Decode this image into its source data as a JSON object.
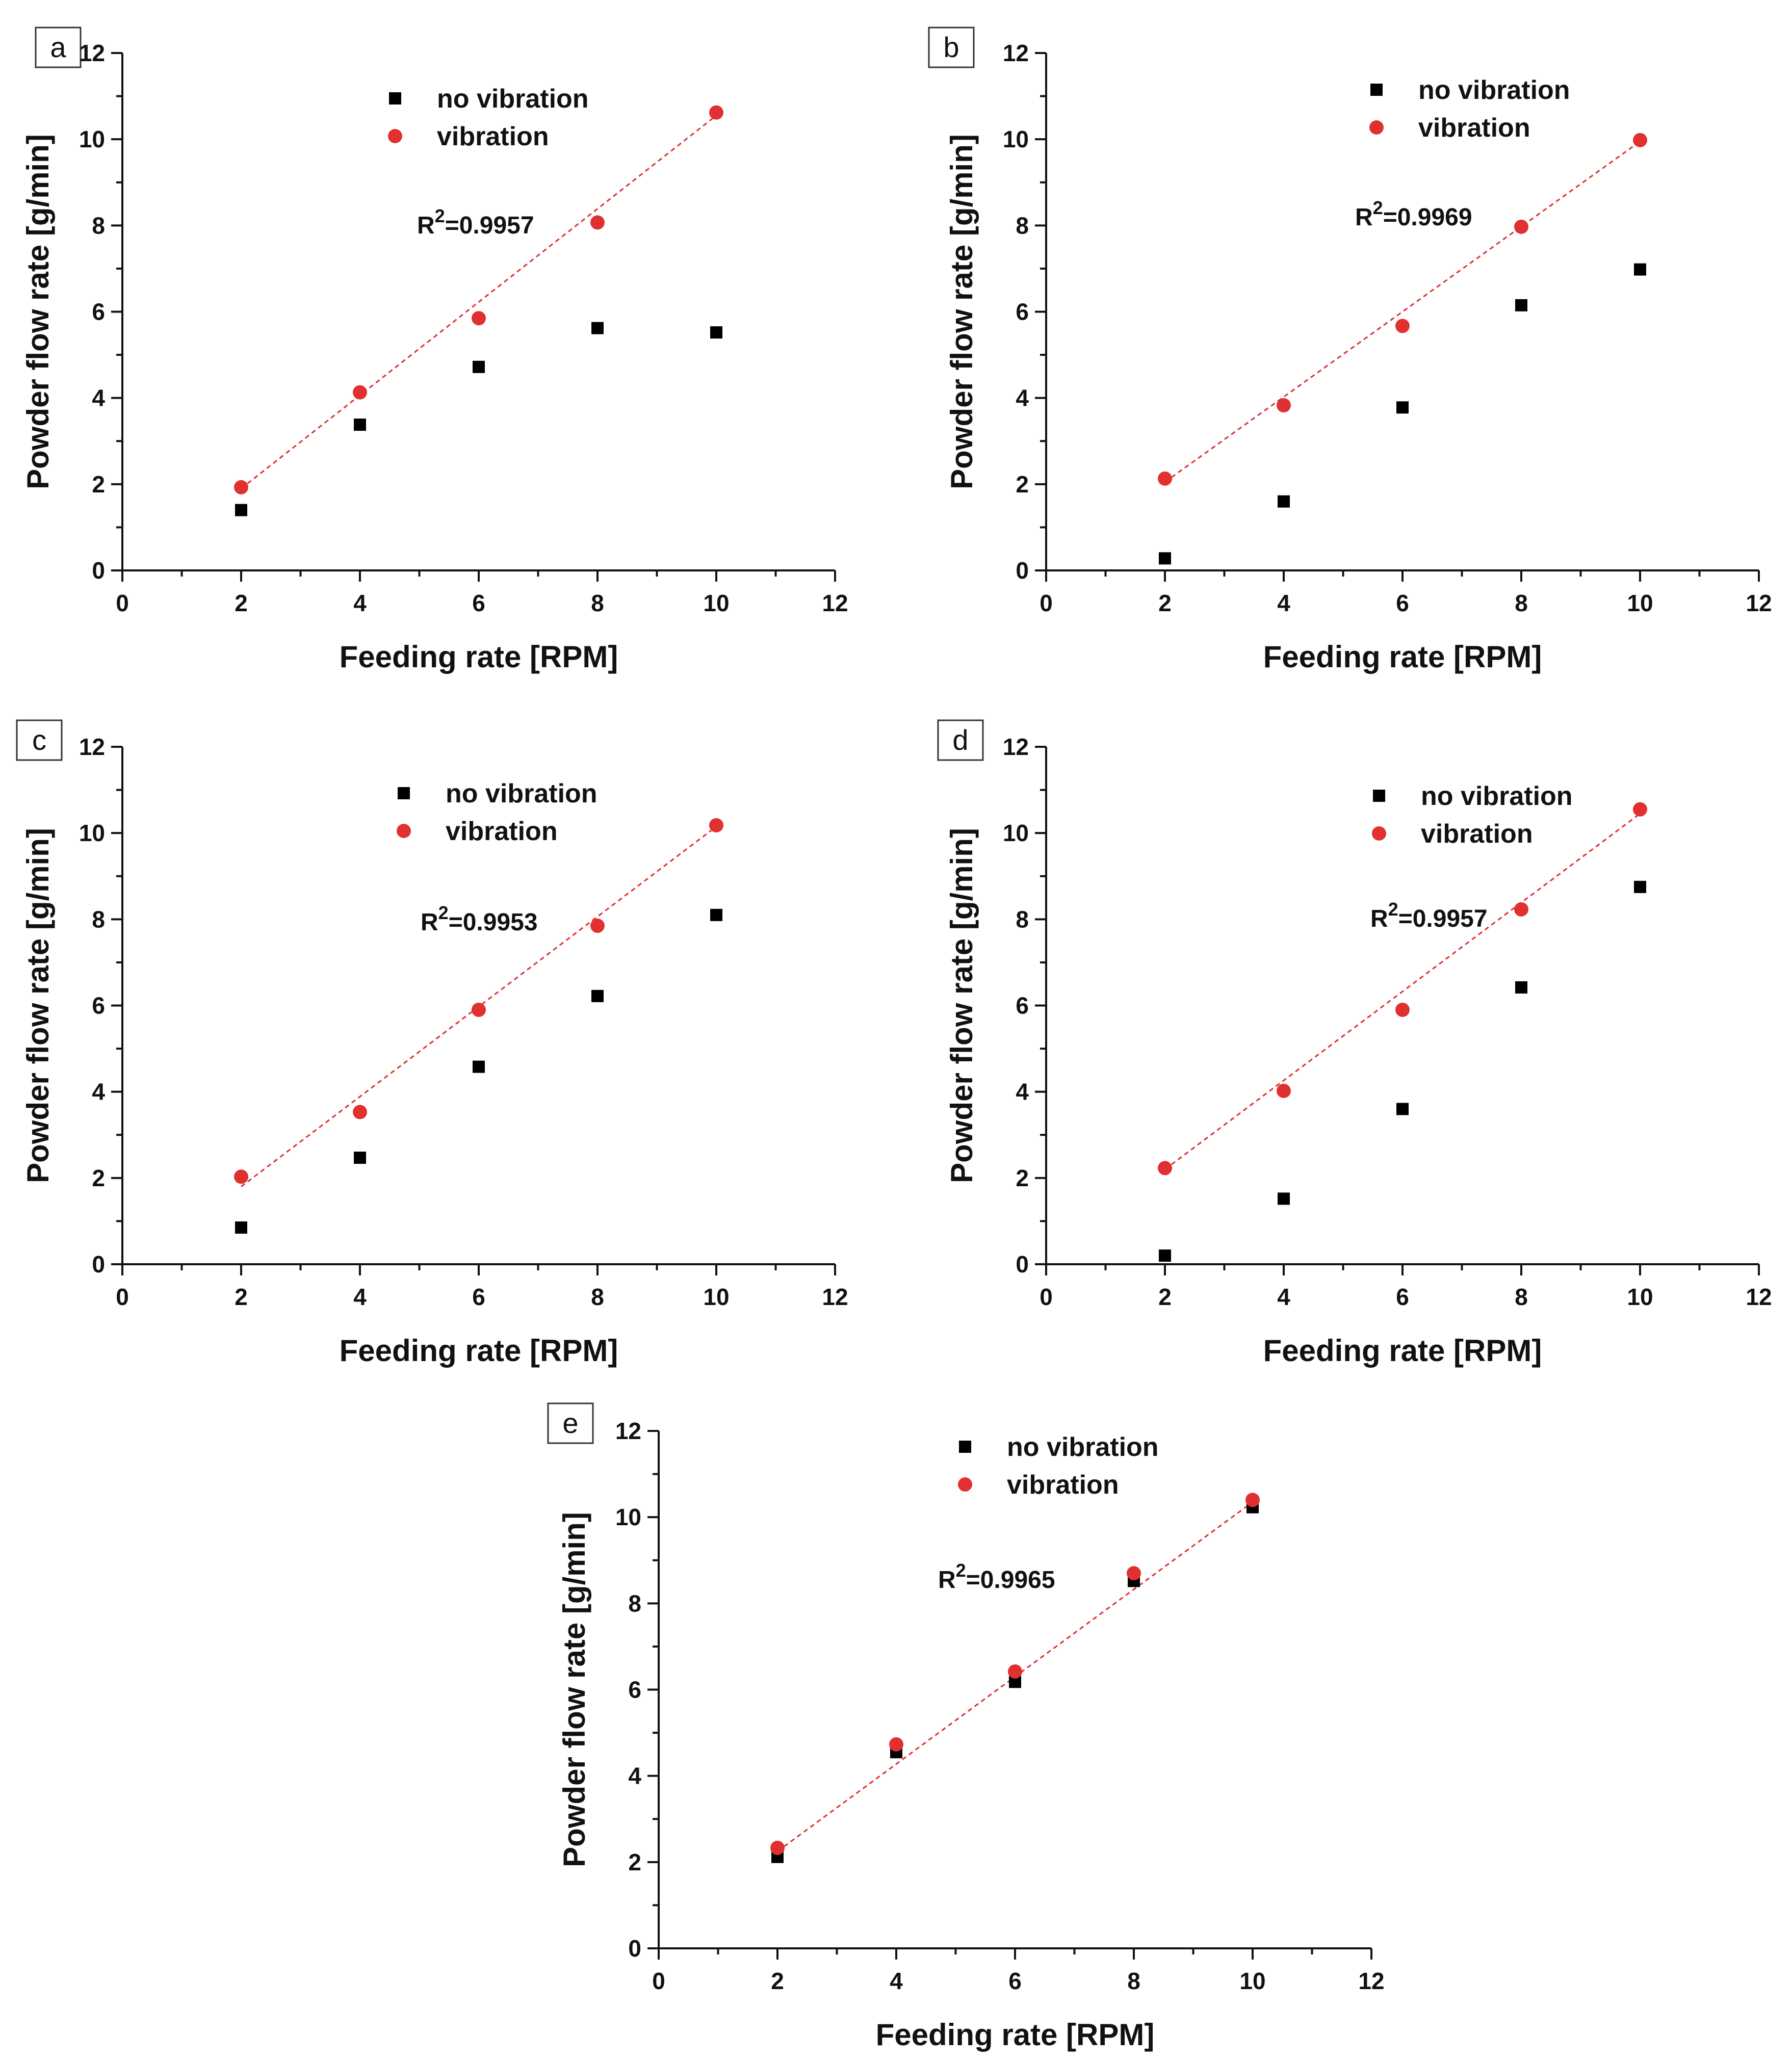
{
  "figure": {
    "colors": {
      "no_vibration": "#000000",
      "vibration": "#e03030",
      "fit_line": "#e03030",
      "axis": "#111111"
    }
  },
  "chart_data": [
    {
      "panel": "a",
      "type": "scatter",
      "xlabel": "Feeding rate [RPM]",
      "ylabel": "Powder flow rate [g/min]",
      "xlim": [
        0,
        12
      ],
      "ylim": [
        0,
        12
      ],
      "xticks": [
        0,
        2,
        4,
        6,
        8,
        10,
        12
      ],
      "yticks": [
        0,
        2,
        4,
        6,
        8,
        10,
        12
      ],
      "legend_position": "top-center",
      "r2_prefix": "R",
      "r2_exp": "2",
      "r2_value": "=0.9957",
      "series": [
        {
          "name": "no vibration",
          "marker": "square",
          "x": [
            2,
            4,
            6,
            8,
            10
          ],
          "y": [
            1.4,
            3.38,
            4.72,
            5.62,
            5.52
          ]
        },
        {
          "name": "vibration",
          "marker": "circle",
          "x": [
            2,
            4,
            6,
            8,
            10
          ],
          "y": [
            1.93,
            4.13,
            5.85,
            8.07,
            10.62
          ]
        }
      ],
      "fit": {
        "x": [
          2,
          10
        ],
        "y": [
          1.9,
          10.55
        ]
      }
    },
    {
      "panel": "b",
      "type": "scatter",
      "xlabel": "Feeding rate [RPM]",
      "ylabel": "Powder flow rate [g/min]",
      "xlim": [
        0,
        12
      ],
      "ylim": [
        0,
        12
      ],
      "xticks": [
        0,
        2,
        4,
        6,
        8,
        10,
        12
      ],
      "yticks": [
        0,
        2,
        4,
        6,
        8,
        10,
        12
      ],
      "legend_position": "top-right",
      "r2_prefix": "R",
      "r2_exp": "2",
      "r2_value": "=0.9969",
      "series": [
        {
          "name": "no vibration",
          "marker": "square",
          "x": [
            2,
            4,
            6,
            8,
            10
          ],
          "y": [
            0.28,
            1.6,
            3.78,
            6.15,
            6.98
          ]
        },
        {
          "name": "vibration",
          "marker": "circle",
          "x": [
            2,
            4,
            6,
            8,
            10
          ],
          "y": [
            2.13,
            3.83,
            5.67,
            7.97,
            9.98
          ]
        }
      ],
      "fit": {
        "x": [
          2,
          10
        ],
        "y": [
          2.05,
          9.95
        ]
      }
    },
    {
      "panel": "c",
      "type": "scatter",
      "xlabel": "Feeding rate [RPM]",
      "ylabel": "Powder flow rate [g/min]",
      "xlim": [
        0,
        12
      ],
      "ylim": [
        0,
        12
      ],
      "xticks": [
        0,
        2,
        4,
        6,
        8,
        10,
        12
      ],
      "yticks": [
        0,
        2,
        4,
        6,
        8,
        10,
        12
      ],
      "legend_position": "top-center",
      "r2_prefix": "R",
      "r2_exp": "2",
      "r2_value": "=0.9953",
      "series": [
        {
          "name": "no vibration",
          "marker": "square",
          "x": [
            2,
            4,
            6,
            8,
            10
          ],
          "y": [
            0.85,
            2.47,
            4.58,
            6.22,
            8.1
          ]
        },
        {
          "name": "vibration",
          "marker": "circle",
          "x": [
            2,
            4,
            6,
            8,
            10
          ],
          "y": [
            2.03,
            3.53,
            5.9,
            7.85,
            10.18
          ]
        }
      ],
      "fit": {
        "x": [
          2,
          10
        ],
        "y": [
          1.8,
          10.15
        ]
      }
    },
    {
      "panel": "d",
      "type": "scatter",
      "xlabel": "Feeding rate [RPM]",
      "ylabel": "Powder flow rate [g/min]",
      "xlim": [
        0,
        12
      ],
      "ylim": [
        0,
        12
      ],
      "xticks": [
        0,
        2,
        4,
        6,
        8,
        10,
        12
      ],
      "yticks": [
        0,
        2,
        4,
        6,
        8,
        10,
        12
      ],
      "legend_position": "top-right",
      "r2_prefix": "R",
      "r2_exp": "2",
      "r2_value": "=0.9957",
      "series": [
        {
          "name": "no vibration",
          "marker": "square",
          "x": [
            2,
            4,
            6,
            8,
            10
          ],
          "y": [
            0.2,
            1.52,
            3.6,
            6.42,
            8.75
          ]
        },
        {
          "name": "vibration",
          "marker": "circle",
          "x": [
            2,
            4,
            6,
            8,
            10
          ],
          "y": [
            2.23,
            4.02,
            5.9,
            8.23,
            10.55
          ]
        }
      ],
      "fit": {
        "x": [
          2,
          10
        ],
        "y": [
          2.2,
          10.45
        ]
      }
    },
    {
      "panel": "e",
      "type": "scatter",
      "xlabel": "Feeding rate [RPM]",
      "ylabel": "Powder flow rate [g/min]",
      "xlim": [
        0,
        12
      ],
      "ylim": [
        0,
        12
      ],
      "xticks": [
        0,
        2,
        4,
        6,
        8,
        10,
        12
      ],
      "yticks": [
        0,
        2,
        4,
        6,
        8,
        10,
        12
      ],
      "legend_position": "top-center",
      "r2_prefix": "R",
      "r2_exp": "2",
      "r2_value": "=0.9965",
      "series": [
        {
          "name": "no vibration",
          "marker": "square",
          "x": [
            2,
            4,
            6,
            8,
            10
          ],
          "y": [
            2.12,
            4.55,
            6.18,
            8.52,
            10.23
          ]
        },
        {
          "name": "vibration",
          "marker": "circle",
          "x": [
            2,
            4,
            6,
            8,
            10
          ],
          "y": [
            2.33,
            4.73,
            6.42,
            8.7,
            10.4
          ]
        }
      ],
      "fit": {
        "x": [
          2,
          10
        ],
        "y": [
          2.25,
          10.35
        ]
      }
    }
  ]
}
